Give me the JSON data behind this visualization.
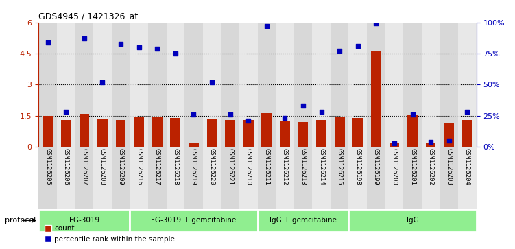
{
  "title": "GDS4945 / 1421326_at",
  "samples": [
    "GSM1126205",
    "GSM1126206",
    "GSM1126207",
    "GSM1126208",
    "GSM1126209",
    "GSM1126216",
    "GSM1126217",
    "GSM1126218",
    "GSM1126219",
    "GSM1126220",
    "GSM1126221",
    "GSM1126210",
    "GSM1126211",
    "GSM1126212",
    "GSM1126213",
    "GSM1126214",
    "GSM1126215",
    "GSM1126198",
    "GSM1126199",
    "GSM1126200",
    "GSM1126201",
    "GSM1126202",
    "GSM1126203",
    "GSM1126204"
  ],
  "counts": [
    1.5,
    1.3,
    1.6,
    1.33,
    1.28,
    1.45,
    1.42,
    1.38,
    0.22,
    1.33,
    1.28,
    1.28,
    1.63,
    1.25,
    1.21,
    1.3,
    1.42,
    1.38,
    4.63,
    0.22,
    1.52,
    0.18,
    1.17,
    1.3
  ],
  "percentiles_pct": [
    84,
    28,
    87,
    52,
    83,
    80,
    79,
    75,
    26,
    52,
    26,
    21,
    97,
    23,
    33,
    28,
    77,
    81,
    99,
    3,
    26,
    4,
    5,
    28
  ],
  "groups": [
    {
      "label": "FG-3019",
      "start": 0,
      "end": 5
    },
    {
      "label": "FG-3019 + gemcitabine",
      "start": 5,
      "end": 12
    },
    {
      "label": "IgG + gemcitabine",
      "start": 12,
      "end": 17
    },
    {
      "label": "IgG",
      "start": 17,
      "end": 24
    }
  ],
  "bar_color": "#bb2200",
  "dot_color": "#0000bb",
  "ylim_left": [
    0,
    6
  ],
  "ylim_right": [
    0,
    100
  ],
  "yticks_left": [
    0,
    1.5,
    3.0,
    4.5,
    6.0
  ],
  "yticks_right": [
    0,
    25,
    50,
    75,
    100
  ],
  "ytick_labels_left": [
    "0",
    "1.5",
    "3",
    "4.5",
    "6"
  ],
  "ytick_labels_right": [
    "0%",
    "25%",
    "50%",
    "75%",
    "100%"
  ],
  "hlines": [
    1.5,
    3.0,
    4.5
  ],
  "bar_width": 0.55,
  "bg_colors": [
    "#d8d8d8",
    "#e8e8e8"
  ],
  "group_color": "#90ee90",
  "group_border_color": "#ffffff"
}
